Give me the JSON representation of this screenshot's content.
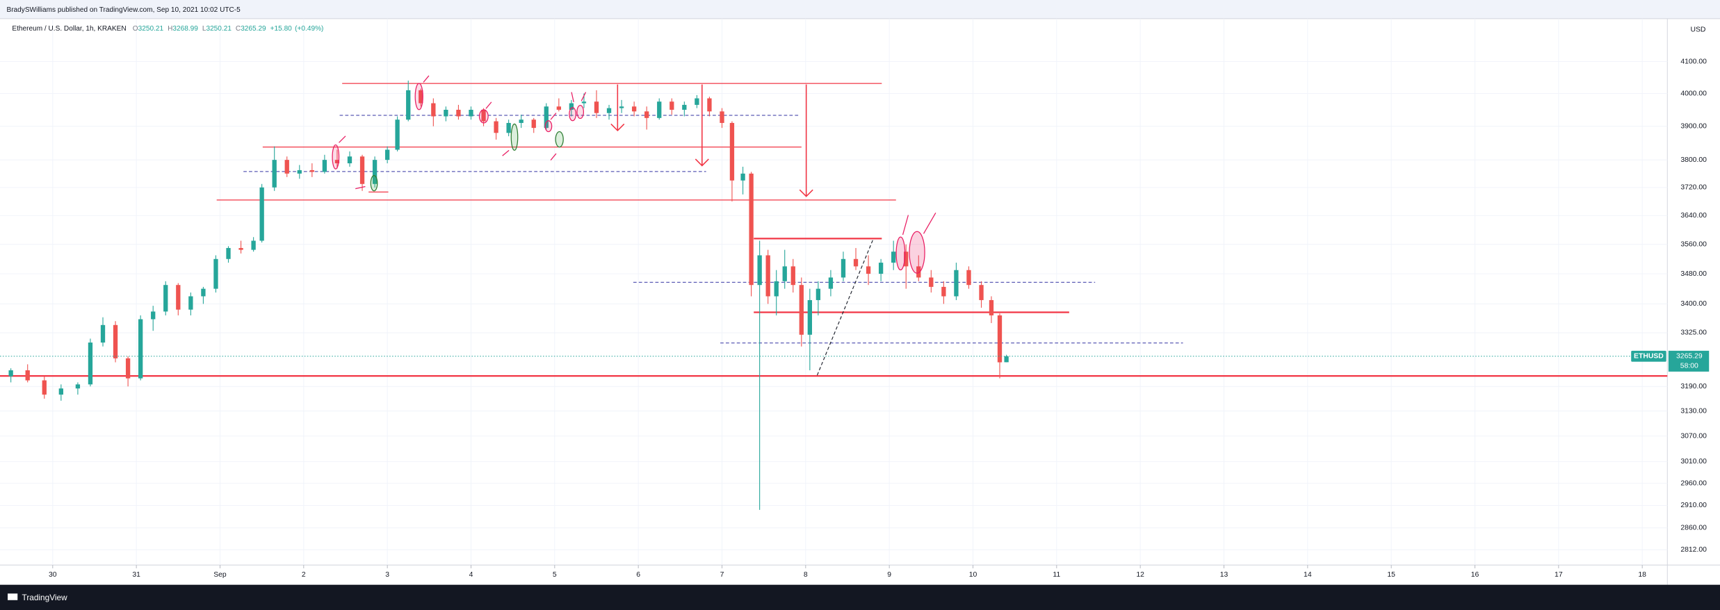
{
  "header": {
    "publisher": "BradySWilliams published on TradingView.com, Sep 10, 2021 10:02 UTC-5",
    "brand": "TradingView"
  },
  "chart_data": {
    "type": "candlestick",
    "symbol_title": "Ethereum / U.S. Dollar, 1h, KRAKEN",
    "ohlc_prefixes": [
      "O",
      "H",
      "L",
      "C"
    ],
    "change": {
      "value": 15.8,
      "label": "+15.80"
    },
    "change_pct": {
      "value": 0.49,
      "label": "(+0.49%)"
    },
    "currency": "USD",
    "symbol_tag": "ETHUSD",
    "countdown": "58:00",
    "log_scale": true,
    "grid": true,
    "up_color": "#26a69a",
    "down_color": "#ef5350",
    "x": [
      -0.5,
      -0.3,
      -0.1,
      0.1,
      0.3,
      0.45,
      0.6,
      0.75,
      0.9,
      1.05,
      1.2,
      1.35,
      1.5,
      1.65,
      1.8,
      1.95,
      2.1,
      2.25,
      2.4,
      2.5,
      2.65,
      2.8,
      2.95,
      3.1,
      3.25,
      3.4,
      3.55,
      3.7,
      3.85,
      4.0,
      4.12,
      4.25,
      4.4,
      4.55,
      4.7,
      4.85,
      5.0,
      5.15,
      5.3,
      5.45,
      5.6,
      5.75,
      5.9,
      6.05,
      6.2,
      6.35,
      6.5,
      6.65,
      6.8,
      6.95,
      7.1,
      7.25,
      7.4,
      7.55,
      7.7,
      7.85,
      8.0,
      8.12,
      8.25,
      8.35,
      8.45,
      8.55,
      8.65,
      8.75,
      8.85,
      8.95,
      9.05,
      9.15,
      9.3,
      9.45,
      9.6,
      9.75,
      9.9,
      10.05,
      10.2,
      10.35,
      10.5,
      10.65,
      10.8,
      10.95,
      11.1,
      11.22,
      11.32,
      11.4
    ],
    "open": [
      3215,
      3230,
      3205,
      3170,
      3185,
      3195,
      3300,
      3345,
      3260,
      3210,
      3360,
      3380,
      3450,
      3385,
      3420,
      3440,
      3520,
      3550,
      3545,
      3570,
      3720,
      3800,
      3760,
      3770,
      3765,
      3800,
      3790,
      3810,
      3730,
      3800,
      3830,
      3920,
      4010,
      3970,
      3930,
      3950,
      3930,
      3950,
      3915,
      3880,
      3910,
      3920,
      3895,
      3960,
      3950,
      3970,
      3975,
      3940,
      3955,
      3960,
      3945,
      3925,
      3975,
      3950,
      3965,
      3985,
      3945,
      3910,
      3740,
      3760,
      3450,
      3530,
      3420,
      3460,
      3500,
      3450,
      3320,
      3410,
      3440,
      3470,
      3520,
      3500,
      3480,
      3510,
      3540,
      3500,
      3470,
      3445,
      3420,
      3490,
      3450,
      3410,
      3370,
      3250.21
    ],
    "high": [
      3235,
      3245,
      3215,
      3195,
      3200,
      3310,
      3365,
      3355,
      3265,
      3370,
      3395,
      3460,
      3455,
      3430,
      3445,
      3530,
      3555,
      3570,
      3580,
      3730,
      3840,
      3810,
      3785,
      3790,
      3815,
      3830,
      3825,
      3815,
      3810,
      3840,
      3930,
      4040,
      4015,
      3985,
      3960,
      3965,
      3960,
      3955,
      3925,
      3920,
      3935,
      3925,
      3970,
      3985,
      3980,
      4000,
      4010,
      3965,
      3980,
      3975,
      3960,
      3985,
      3985,
      3975,
      3995,
      3990,
      3955,
      3915,
      3780,
      3765,
      3570,
      3545,
      3490,
      3545,
      3520,
      3470,
      3440,
      3460,
      3490,
      3540,
      3550,
      3530,
      3520,
      3570,
      3560,
      3530,
      3490,
      3460,
      3510,
      3500,
      3460,
      3420,
      3375,
      3268.99
    ],
    "low": [
      3200,
      3200,
      3160,
      3155,
      3170,
      3190,
      3290,
      3250,
      3190,
      3205,
      3330,
      3370,
      3370,
      3370,
      3400,
      3430,
      3510,
      3535,
      3540,
      3565,
      3710,
      3750,
      3745,
      3750,
      3760,
      3775,
      3780,
      3710,
      3720,
      3790,
      3825,
      3915,
      3960,
      3900,
      3915,
      3920,
      3920,
      3900,
      3860,
      3870,
      3895,
      3880,
      3890,
      3945,
      3930,
      3955,
      3925,
      3920,
      3940,
      3930,
      3890,
      3920,
      3935,
      3930,
      3955,
      3930,
      3895,
      3680,
      3700,
      3420,
      2900,
      3400,
      3370,
      3440,
      3430,
      3290,
      3230,
      3370,
      3420,
      3460,
      3490,
      3450,
      3460,
      3490,
      3440,
      3460,
      3430,
      3400,
      3410,
      3440,
      3390,
      3350,
      3210,
      3250.21
    ],
    "close": [
      3230,
      3205,
      3170,
      3185,
      3195,
      3300,
      3345,
      3260,
      3210,
      3360,
      3380,
      3450,
      3385,
      3420,
      3440,
      3520,
      3550,
      3545,
      3570,
      3720,
      3800,
      3760,
      3770,
      3765,
      3800,
      3790,
      3810,
      3730,
      3800,
      3830,
      3920,
      4010,
      3970,
      3930,
      3950,
      3930,
      3950,
      3915,
      3880,
      3910,
      3920,
      3895,
      3960,
      3950,
      3970,
      3975,
      3940,
      3955,
      3960,
      3945,
      3925,
      3975,
      3950,
      3965,
      3985,
      3945,
      3910,
      3740,
      3760,
      3450,
      3530,
      3420,
      3460,
      3500,
      3450,
      3320,
      3410,
      3440,
      3470,
      3520,
      3500,
      3480,
      3510,
      3540,
      3500,
      3470,
      3445,
      3420,
      3490,
      3450,
      3410,
      3370,
      3250,
      3265.29
    ],
    "levels": [
      {
        "value": 4031,
        "from": 3.46,
        "to": 9.91,
        "color": "#f23645",
        "style": "solid"
      },
      {
        "value": 3838,
        "from": 2.51,
        "to": 8.95,
        "color": "#f23645",
        "style": "solid"
      },
      {
        "value": 3684,
        "from": 1.96,
        "to": 10.08,
        "color": "#f23645",
        "style": "solid"
      },
      {
        "value": 3576,
        "from": 8.38,
        "to": 9.91,
        "color": "#f23645",
        "style": "bold"
      },
      {
        "value": 3378,
        "from": 8.38,
        "to": 12.15,
        "color": "#f23645",
        "style": "bold"
      },
      {
        "value": 3216,
        "from": -0.63,
        "to": 19.3,
        "color": "#f23645",
        "style": "bold"
      },
      {
        "value": 3933,
        "from": 3.43,
        "to": 8.93,
        "color": "#5b5bb5",
        "style": "dashed"
      },
      {
        "value": 3766,
        "from": 2.28,
        "to": 7.81,
        "color": "#5b5bb5",
        "style": "dashed"
      },
      {
        "value": 3457,
        "from": 6.94,
        "to": 12.46,
        "color": "#5b5bb5",
        "style": "dashed"
      },
      {
        "value": 3299,
        "from": 7.98,
        "to": 13.51,
        "color": "#5b5bb5",
        "style": "dashed"
      }
    ],
    "xlim": [
      -0.63,
      19.3
    ],
    "ylim": [
      2779,
      4238
    ],
    "xticks": [
      {
        "value": 0,
        "label": "30"
      },
      {
        "value": 1,
        "label": "31"
      },
      {
        "value": 2,
        "label": "Sep"
      },
      {
        "value": 3,
        "label": "2"
      },
      {
        "value": 4,
        "label": "3"
      },
      {
        "value": 5,
        "label": "4"
      },
      {
        "value": 6,
        "label": "5"
      },
      {
        "value": 7,
        "label": "6"
      },
      {
        "value": 8,
        "label": "7"
      },
      {
        "value": 9,
        "label": "8"
      },
      {
        "value": 10,
        "label": "9"
      },
      {
        "value": 11,
        "label": "10"
      },
      {
        "value": 12,
        "label": "11"
      },
      {
        "value": 13,
        "label": "12"
      },
      {
        "value": 14,
        "label": "13"
      },
      {
        "value": 15,
        "label": "14"
      },
      {
        "value": 16,
        "label": "15"
      },
      {
        "value": 17,
        "label": "16"
      },
      {
        "value": 18,
        "label": "17"
      },
      {
        "value": 19,
        "label": "18"
      }
    ],
    "yticks": [
      {
        "value": 4100,
        "label": "4100.00"
      },
      {
        "value": 4000,
        "label": "4000.00"
      },
      {
        "value": 3900,
        "label": "3900.00"
      },
      {
        "value": 3800,
        "label": "3800.00"
      },
      {
        "value": 3720,
        "label": "3720.00"
      },
      {
        "value": 3640,
        "label": "3640.00"
      },
      {
        "value": 3560,
        "label": "3560.00"
      },
      {
        "value": 3480,
        "label": "3480.00"
      },
      {
        "value": 3400,
        "label": "3400.00"
      },
      {
        "value": 3325,
        "label": "3325.00"
      },
      {
        "value": 3190,
        "label": "3190.00"
      },
      {
        "value": 3130,
        "label": "3130.00"
      },
      {
        "value": 3070,
        "label": "3070.00"
      },
      {
        "value": 3010,
        "label": "3010.00"
      },
      {
        "value": 2960,
        "label": "2960.00"
      },
      {
        "value": 2910,
        "label": "2910.00"
      },
      {
        "value": 2860,
        "label": "2860.00"
      },
      {
        "value": 2812,
        "label": "2812.00"
      }
    ]
  }
}
